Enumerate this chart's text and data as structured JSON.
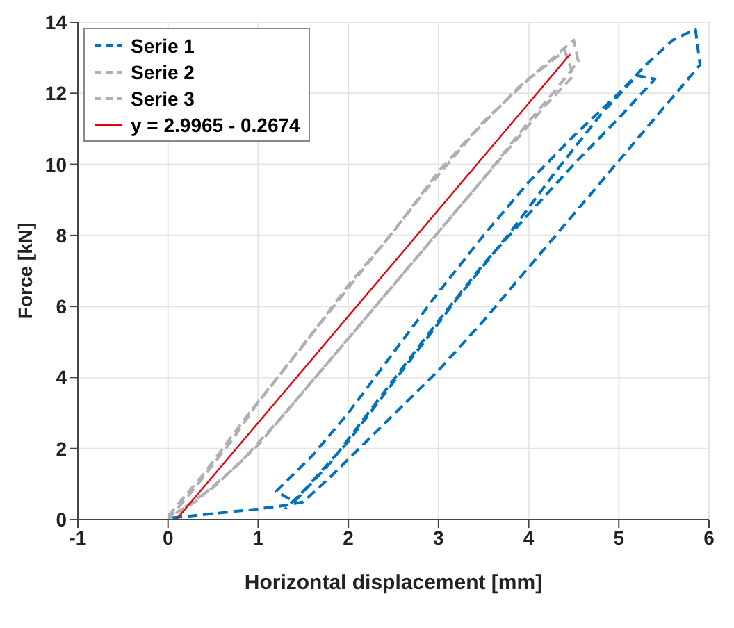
{
  "chart_data": {
    "type": "line",
    "xlabel": "Horizontal displacement [mm]",
    "ylabel": "Force [kN]",
    "xlim": [
      -1,
      6
    ],
    "xticks": [
      -1,
      0,
      1,
      2,
      3,
      4,
      5,
      6
    ],
    "ylim": [
      0,
      14
    ],
    "yticks": [
      0,
      2,
      4,
      6,
      8,
      10,
      12,
      14
    ],
    "grid": true,
    "legend": "top left",
    "marker": "none",
    "series": [
      {
        "name": "Serie 1",
        "color": "#0072bd",
        "line_style": "dashed",
        "x": [
          0.05,
          1.0,
          1.3,
          1.5,
          1.8,
          2.2,
          2.6,
          3,
          3.5,
          4,
          4.5,
          5,
          5.5,
          5.9,
          5.85,
          5.6,
          5.3,
          5,
          4.5,
          4,
          3.5,
          3,
          2.5,
          2,
          1.6,
          1.2,
          1.4,
          1.8,
          2.4,
          3,
          3.5,
          4,
          4.5,
          5,
          5.4,
          5.2,
          4.8,
          4.3,
          3.8,
          3.2,
          2.6,
          2,
          1.5,
          1.3
        ],
        "values": [
          0.05,
          0.3,
          0.4,
          0.5,
          1.2,
          2.2,
          3.2,
          4.2,
          5.6,
          7.1,
          8.6,
          10.1,
          11.6,
          12.8,
          13.8,
          13.5,
          12.8,
          12.0,
          10.8,
          9.5,
          8.0,
          6.4,
          4.7,
          3.0,
          1.8,
          0.8,
          0.5,
          1.6,
          3.6,
          5.6,
          7.2,
          8.6,
          10.0,
          11.3,
          12.4,
          12.5,
          11.4,
          9.8,
          8.1,
          6.2,
          4.2,
          2.2,
          0.8,
          0.3
        ]
      },
      {
        "name": "Serie 2",
        "color": "#b0b0b0",
        "line_style": "dashed",
        "x": [
          0,
          0.3,
          0.7,
          1,
          1.5,
          2,
          2.5,
          3,
          3.5,
          4,
          4.5,
          4.55,
          4.3,
          4,
          3.5,
          3,
          2.5,
          2,
          1.5,
          1,
          0.5,
          0.1
        ],
        "values": [
          0,
          0.9,
          2.2,
          3.3,
          4.9,
          6.6,
          8.1,
          9.8,
          11.2,
          12.4,
          13.5,
          12.9,
          12.1,
          11.2,
          9.6,
          8.1,
          6.6,
          5.1,
          3.6,
          2.1,
          0.9,
          0.2
        ]
      },
      {
        "name": "Serie 3",
        "color": "#b0b0b0",
        "line_style": "dashed",
        "x": [
          0,
          0.4,
          0.9,
          1.4,
          1.9,
          2.4,
          2.9,
          3.4,
          3.9,
          4.4,
          4.5,
          4.2,
          3.8,
          3.3,
          2.8,
          2.3,
          1.8,
          1.3,
          0.8,
          0.3,
          0
        ],
        "values": [
          0.1,
          1.3,
          3.0,
          4.6,
          6.2,
          7.8,
          9.4,
          10.9,
          12.2,
          13.2,
          12.5,
          11.7,
          10.5,
          9.0,
          7.5,
          6.0,
          4.5,
          3.0,
          1.6,
          0.5,
          0.05
        ]
      },
      {
        "name": "y = 2.9965 - 0.2674",
        "color": "#e8000b",
        "line_style": "solid",
        "x": [
          0.09,
          4.46
        ],
        "values": [
          0.0,
          13.1
        ]
      }
    ]
  }
}
